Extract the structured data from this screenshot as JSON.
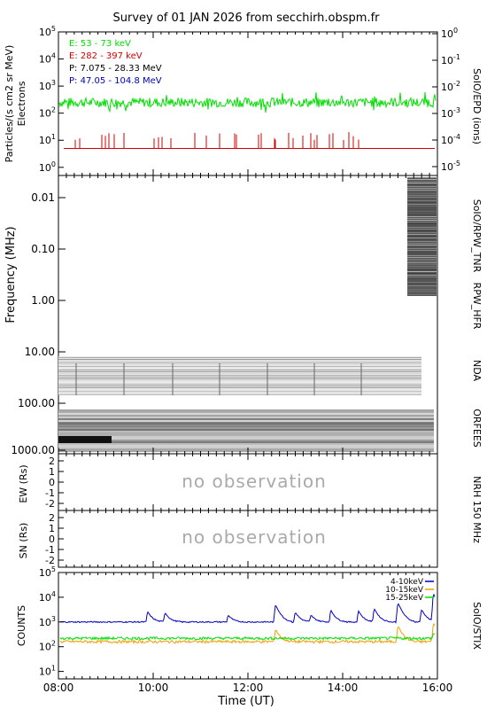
{
  "title": "Survey of 01 JAN 2026 from secchirh.obspm.fr",
  "xlabel": "Time (UT)",
  "colors": {
    "green": "#00e000",
    "red": "#d00000",
    "black": "#000000",
    "blue": "#0000c0",
    "orange": "#f0a000",
    "gray": "#888888"
  },
  "panels": {
    "epd": {
      "ylabel_left_1": "Particles/(s cm2 sr MeV)",
      "ylabel_left_2": "Electrons",
      "ylabel_right": "SoIO/EPD (ions)",
      "left_ticks": [
        "10^0",
        "10^1",
        "10^2",
        "10^3",
        "10^4",
        "10^5"
      ],
      "right_ticks": [
        "10^-5",
        "10^-4",
        "10^-3",
        "10^-2",
        "10^-1",
        "10^0"
      ],
      "legend": [
        {
          "text": "E: 53 - 73 keV",
          "color": "#00e000"
        },
        {
          "text": "E: 282 - 397 keV",
          "color": "#d00000"
        },
        {
          "text": "P: 7.075 - 28.33 MeV",
          "color": "#000000"
        },
        {
          "text": "P: 47.05 - 104.8 MeV",
          "color": "#0000c0"
        }
      ]
    },
    "spectro": {
      "ylabel": "Frequency (MHz)",
      "ticks": [
        "0.01",
        "0.10",
        "1.00",
        "10.00",
        "100.00",
        "1000.00"
      ],
      "right_labels": [
        "SoIO/RPW_TNR",
        "RPW_HFR",
        "NDA",
        "ORFEES"
      ]
    },
    "nrh_ew": {
      "ylabel": "EW (Rs)",
      "message": "no observation",
      "ticks": [
        "2",
        "1",
        "0",
        "-1",
        "-2"
      ]
    },
    "nrh_sn": {
      "ylabel": "SN (Rs)",
      "message": "no observation",
      "ticks": [
        "2",
        "1",
        "0",
        "-1",
        "-2"
      ]
    },
    "nrh_label": "NRH 150 MHz",
    "stix": {
      "ylabel": "COUNTS",
      "right_label": "SoIO/STIX",
      "ticks": [
        "10^1",
        "10^2",
        "10^3",
        "10^4",
        "10^5"
      ],
      "legend": [
        {
          "text": "4-10keV",
          "color": "#0000c0"
        },
        {
          "text": "10-15keV",
          "color": "#f0a000"
        },
        {
          "text": "15-25keV",
          "color": "#00e000"
        }
      ]
    }
  },
  "chart_data": {
    "type": "line",
    "x_ticks": [
      "08:00",
      "10:00",
      "12:00",
      "14:00",
      "16:00"
    ],
    "x_range": [
      "08:00",
      "16:00"
    ],
    "epd_series": [
      {
        "name": "E: 53 - 73 keV",
        "baseline": 250,
        "noise": 0.35
      },
      {
        "name": "E: 282 - 397 keV",
        "baseline": 5,
        "spikes": true
      }
    ],
    "epd_ylim": [
      0.5,
      100000
    ],
    "stix_ylim": [
      5,
      100000
    ],
    "stix_series": [
      {
        "name": "4-10keV",
        "baseline": 1000,
        "flares": [
          [
            "09:53",
            2600
          ],
          [
            "10:15",
            2400
          ],
          [
            "11:35",
            1900
          ],
          [
            "12:35",
            5000
          ],
          [
            "13:00",
            2500
          ],
          [
            "13:20",
            1900
          ],
          [
            "13:45",
            3000
          ],
          [
            "14:20",
            2800
          ],
          [
            "14:40",
            3500
          ],
          [
            "15:10",
            6000
          ],
          [
            "15:40",
            3200
          ],
          [
            "15:55",
            14000
          ]
        ]
      },
      {
        "name": "10-15keV",
        "baseline": 160,
        "flares": [
          [
            "12:35",
            500
          ],
          [
            "15:10",
            700
          ],
          [
            "15:55",
            900
          ]
        ]
      },
      {
        "name": "15-25keV",
        "baseline": 220,
        "flares": [
          [
            "15:55",
            350
          ]
        ]
      }
    ]
  }
}
